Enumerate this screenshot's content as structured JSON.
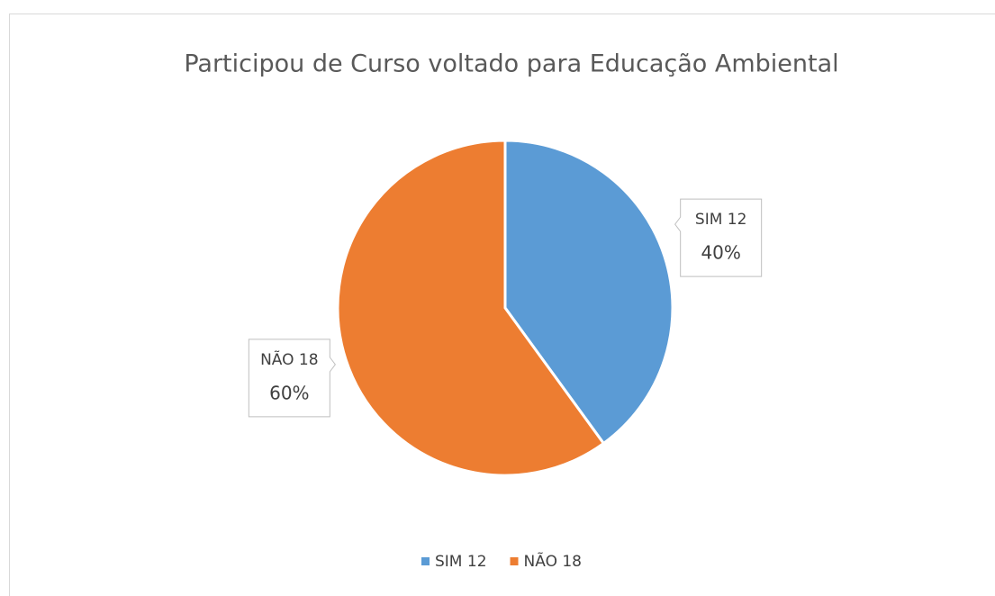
{
  "chart_data": {
    "type": "pie",
    "title": "Participou de Curso voltado para Educação Ambiental",
    "categories": [
      "SIM 12",
      "NÃO 18"
    ],
    "values": [
      40,
      60
    ],
    "value_labels": [
      "40%",
      "60%"
    ],
    "colors": [
      "#5b9bd5",
      "#ed7d31"
    ],
    "legend": "bottom"
  }
}
